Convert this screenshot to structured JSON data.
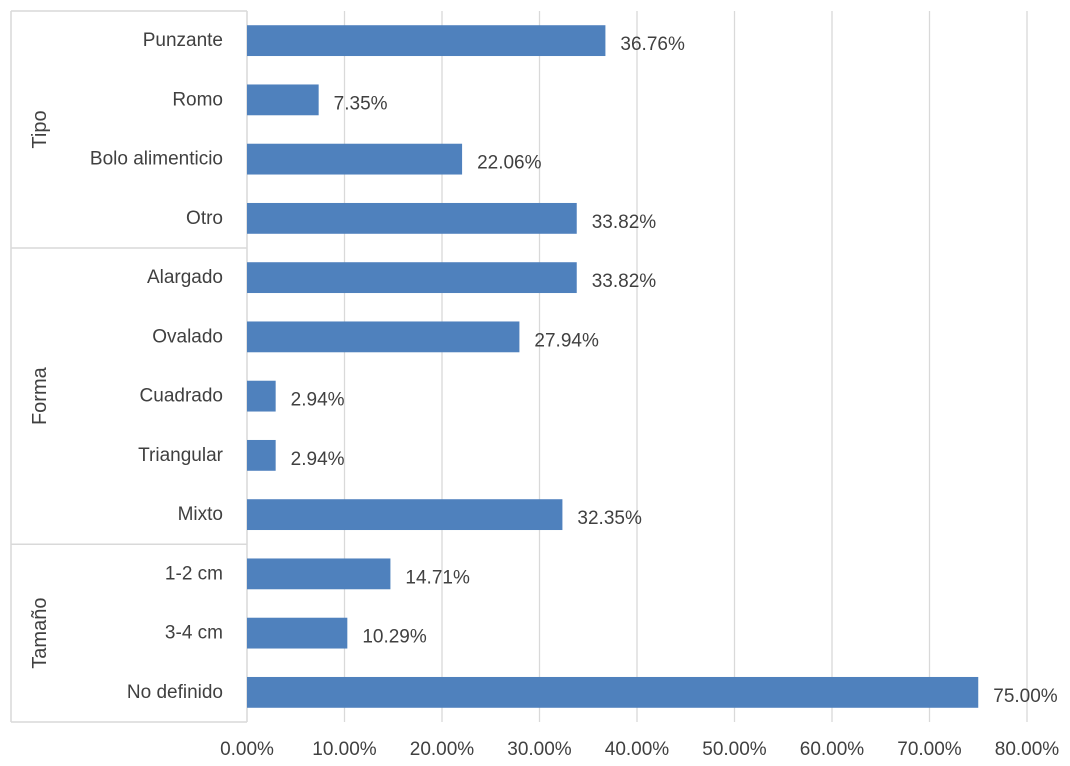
{
  "chart_data": {
    "type": "bar",
    "orientation": "horizontal",
    "series": [
      {
        "values": [
          36.76,
          7.35,
          22.06,
          33.82,
          33.82,
          27.94,
          2.94,
          2.94,
          32.35,
          14.71,
          10.29,
          75.0
        ],
        "color": "#4f81bd"
      }
    ],
    "groups": [
      {
        "label": "Tipo",
        "categories": [
          "Punzante",
          "Romo",
          "Bolo alimenticio",
          "Otro"
        ]
      },
      {
        "label": "Forma",
        "categories": [
          "Alargado",
          "Ovalado",
          "Cuadrado",
          "Triangular",
          "Mixto"
        ]
      },
      {
        "label": "Tamaño",
        "categories": [
          "1-2 cm",
          "3-4 cm",
          "No definido"
        ]
      }
    ],
    "data_labels": [
      "36.76%",
      "7.35%",
      "22.06%",
      "33.82%",
      "33.82%",
      "27.94%",
      "2.94%",
      "2.94%",
      "32.35%",
      "14.71%",
      "10.29%",
      "75.00%"
    ],
    "x_ticks": [
      0,
      10,
      20,
      30,
      40,
      50,
      60,
      70,
      80
    ],
    "x_tick_labels": [
      "0.00%",
      "10.00%",
      "20.00%",
      "30.00%",
      "40.00%",
      "50.00%",
      "60.00%",
      "70.00%",
      "80.00%"
    ],
    "xlim": [
      0,
      80
    ],
    "grid": "vertical",
    "legend": "none",
    "gridline_color": "#d9d9d9",
    "axis_color": "#d9d9d9"
  }
}
